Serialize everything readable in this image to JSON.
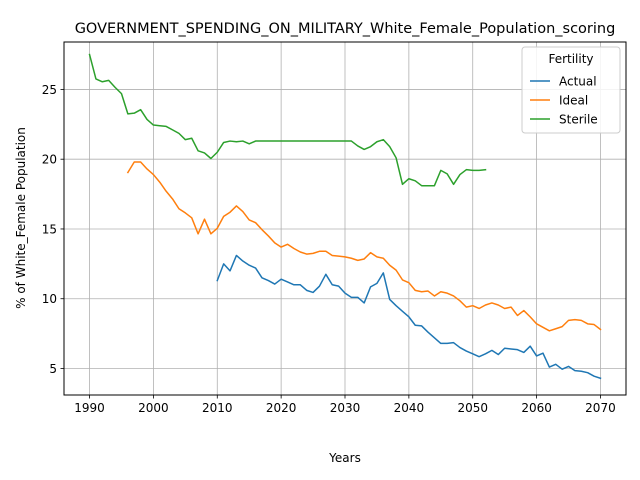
{
  "chart_data": {
    "type": "line",
    "title": "GOVERNMENT_SPENDING_ON_MILITARY_White_Female_Population_scoring",
    "xlabel": "Years",
    "ylabel": "% of White_Female Population",
    "xlim": [
      1986,
      2074
    ],
    "ylim": [
      3.1,
      28.4
    ],
    "xticks": [
      1990,
      2000,
      2010,
      2020,
      2030,
      2040,
      2050,
      2060,
      2070
    ],
    "yticks": [
      5,
      10,
      15,
      20,
      25
    ],
    "grid": true,
    "legend": {
      "title": "Fertility",
      "position": "top-right"
    },
    "series": [
      {
        "name": "Actual",
        "color": "#1f77b4",
        "x": [
          2010,
          2011,
          2012,
          2013,
          2014,
          2015,
          2016,
          2017,
          2018,
          2019,
          2020,
          2021,
          2022,
          2023,
          2024,
          2025,
          2026,
          2027,
          2028,
          2029,
          2030,
          2031,
          2032,
          2033,
          2034,
          2035,
          2036,
          2037,
          2038,
          2039,
          2040,
          2041,
          2042,
          2043,
          2044,
          2045,
          2046,
          2047,
          2048,
          2049,
          2050,
          2051,
          2052,
          2053,
          2054,
          2055,
          2056,
          2057,
          2058,
          2059,
          2060,
          2061,
          2062,
          2063,
          2064,
          2065,
          2066,
          2067,
          2068,
          2069,
          2070
        ],
        "values": [
          11.3,
          12.5,
          12.0,
          13.1,
          12.7,
          12.4,
          12.2,
          11.5,
          11.3,
          11.05,
          11.4,
          11.2,
          11.0,
          11.0,
          10.6,
          10.45,
          10.9,
          11.75,
          11.0,
          10.9,
          10.4,
          10.1,
          10.1,
          9.7,
          10.85,
          11.1,
          11.85,
          9.95,
          9.5,
          9.1,
          8.7,
          8.1,
          8.05,
          7.6,
          7.2,
          6.8,
          6.8,
          6.85,
          6.5,
          6.25,
          6.05,
          5.85,
          6.05,
          6.3,
          6.0,
          6.45,
          6.4,
          6.35,
          6.15,
          6.6,
          5.9,
          6.1,
          5.1,
          5.3,
          4.95,
          5.15,
          4.85,
          4.8,
          4.7,
          4.45,
          4.3
        ]
      },
      {
        "name": "Ideal",
        "color": "#ff7f0e",
        "x": [
          1996,
          1997,
          1998,
          1999,
          2000,
          2001,
          2002,
          2003,
          2004,
          2005,
          2006,
          2007,
          2008,
          2009,
          2010,
          2011,
          2012,
          2013,
          2014,
          2015,
          2016,
          2017,
          2018,
          2019,
          2020,
          2021,
          2022,
          2023,
          2024,
          2025,
          2026,
          2027,
          2028,
          2029,
          2030,
          2031,
          2032,
          2033,
          2034,
          2035,
          2036,
          2037,
          2038,
          2039,
          2040,
          2041,
          2042,
          2043,
          2044,
          2045,
          2046,
          2047,
          2048,
          2049,
          2050,
          2051,
          2052,
          2053,
          2054,
          2055,
          2056,
          2057,
          2058,
          2059,
          2060,
          2061,
          2062,
          2063,
          2064,
          2065,
          2066,
          2067,
          2068,
          2069,
          2070
        ],
        "values": [
          19.05,
          19.8,
          19.8,
          19.3,
          18.9,
          18.35,
          17.7,
          17.15,
          16.45,
          16.15,
          15.8,
          14.65,
          15.7,
          14.65,
          15.05,
          15.9,
          16.2,
          16.65,
          16.25,
          15.65,
          15.45,
          14.95,
          14.5,
          14.0,
          13.7,
          13.9,
          13.6,
          13.35,
          13.2,
          13.25,
          13.4,
          13.4,
          13.1,
          13.05,
          13.0,
          12.9,
          12.75,
          12.85,
          13.3,
          13.0,
          12.9,
          12.4,
          12.05,
          11.35,
          11.15,
          10.6,
          10.5,
          10.55,
          10.2,
          10.5,
          10.4,
          10.2,
          9.85,
          9.4,
          9.5,
          9.3,
          9.55,
          9.7,
          9.55,
          9.3,
          9.4,
          8.8,
          9.15,
          8.7,
          8.2,
          7.95,
          7.7,
          7.85,
          8.0,
          8.45,
          8.5,
          8.45,
          8.2,
          8.15,
          7.8
        ]
      },
      {
        "name": "Sterile",
        "color": "#2ca02c",
        "x": [
          1990,
          1991,
          1992,
          1993,
          1994,
          1995,
          1996,
          1997,
          1998,
          1999,
          2000,
          2001,
          2002,
          2003,
          2004,
          2005,
          2006,
          2007,
          2008,
          2009,
          2010,
          2011,
          2012,
          2013,
          2014,
          2015,
          2016,
          2017,
          2018,
          2019,
          2020,
          2021,
          2022,
          2023,
          2024,
          2025,
          2026,
          2027,
          2028,
          2029,
          2030,
          2031,
          2032,
          2033,
          2034,
          2035,
          2036,
          2037,
          2038,
          2039,
          2040,
          2041,
          2042,
          2043,
          2044,
          2045,
          2046,
          2047,
          2048,
          2049,
          2050,
          2051,
          2052
        ],
        "values": [
          27.5,
          25.75,
          25.55,
          25.65,
          25.15,
          24.7,
          23.25,
          23.3,
          23.55,
          22.85,
          22.45,
          22.4,
          22.35,
          22.1,
          21.85,
          21.4,
          21.5,
          20.6,
          20.45,
          20.05,
          20.5,
          21.2,
          21.3,
          21.25,
          21.3,
          21.1,
          21.3,
          21.3,
          21.3,
          21.3,
          21.3,
          21.3,
          21.3,
          21.3,
          21.3,
          21.3,
          21.3,
          21.3,
          21.3,
          21.3,
          21.3,
          21.3,
          20.95,
          20.7,
          20.9,
          21.25,
          21.4,
          20.9,
          20.1,
          18.2,
          18.6,
          18.45,
          18.1,
          18.1,
          18.1,
          19.2,
          18.95,
          18.2,
          18.9,
          19.25,
          19.2,
          19.2,
          19.25
        ]
      }
    ]
  }
}
